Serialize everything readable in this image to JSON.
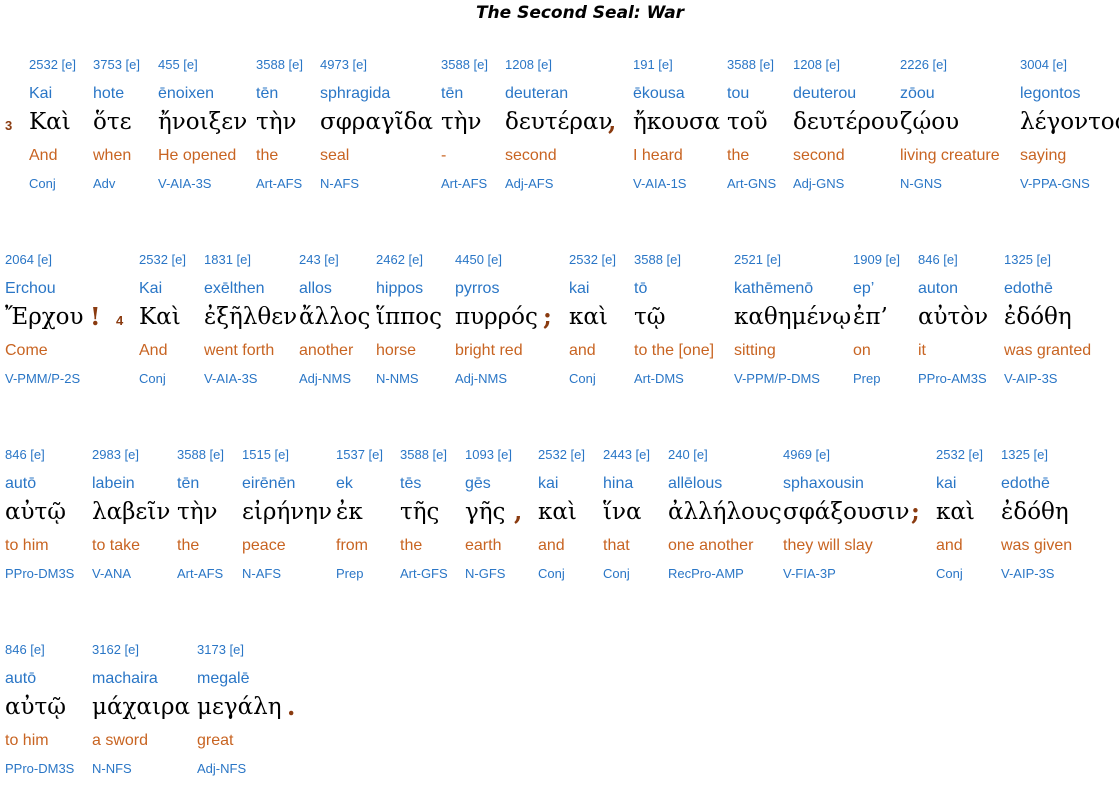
{
  "title": "The Second Seal: War",
  "lines": [
    {
      "verses": [
        {
          "num": "3"
        }
      ],
      "punct": [
        ",",
        ""
      ],
      "words": [
        {
          "strong": "2532 [e]",
          "translit": "Kai",
          "greek": "Καὶ",
          "english": "And",
          "parsing": "Conj"
        },
        {
          "strong": "3753 [e]",
          "translit": "hote",
          "greek": "ὅτε",
          "english": "when",
          "parsing": "Adv"
        },
        {
          "strong": "455 [e]",
          "translit": "ēnoixen",
          "greek": "ἤνοιξεν",
          "english": "He opened",
          "parsing": "V-AIA-3S"
        },
        {
          "strong": "3588 [e]",
          "translit": "tēn",
          "greek": "τὴν",
          "english": "the",
          "parsing": "Art-AFS"
        },
        {
          "strong": "4973 [e]",
          "translit": "sphragida",
          "greek": "σφραγῖδα",
          "english": "seal",
          "parsing": "N-AFS"
        },
        {
          "strong": "3588 [e]",
          "translit": "tēn",
          "greek": "τὴν",
          "english": "-",
          "parsing": "Art-AFS"
        },
        {
          "strong": "1208 [e]",
          "translit": "deuteran",
          "greek": "δευτέραν",
          "english": "second",
          "parsing": "Adj-AFS"
        },
        {
          "strong": "191 [e]",
          "translit": "ēkousa",
          "greek": "ἤκουσα",
          "english": "I heard",
          "parsing": "V-AIA-1S"
        },
        {
          "strong": "3588 [e]",
          "translit": "tou",
          "greek": "τοῦ",
          "english": "the",
          "parsing": "Art-GNS"
        },
        {
          "strong": "1208 [e]",
          "translit": "deuterou",
          "greek": "δευτέρου",
          "english": "second",
          "parsing": "Adj-GNS"
        },
        {
          "strong": "2226 [e]",
          "translit": "zōou",
          "greek": "ζῴου",
          "english": "living creature",
          "parsing": "N-GNS"
        },
        {
          "strong": "3004 [e]",
          "translit": "legontos",
          "greek": "λέγοντος",
          "english": "saying",
          "parsing": "V-PPA-GNS"
        }
      ]
    },
    {
      "verses": [
        {
          "num": "4"
        }
      ],
      "punct": [
        "!",
        ";"
      ],
      "words": [
        {
          "strong": "2064 [e]",
          "translit": "Erchou",
          "greek": "Ἔρχου",
          "english": "Come",
          "parsing": "V-PMM/P-2S"
        },
        {
          "strong": "2532 [e]",
          "translit": "Kai",
          "greek": "Καὶ",
          "english": "And",
          "parsing": "Conj"
        },
        {
          "strong": "1831 [e]",
          "translit": "exēlthen",
          "greek": "ἐξῆλθεν",
          "english": "went forth",
          "parsing": "V-AIA-3S"
        },
        {
          "strong": "243 [e]",
          "translit": "allos",
          "greek": "ἄλλος",
          "english": "another",
          "parsing": "Adj-NMS"
        },
        {
          "strong": "2462 [e]",
          "translit": "hippos",
          "greek": "ἵππος",
          "english": "horse",
          "parsing": "N-NMS"
        },
        {
          "strong": "4450 [e]",
          "translit": "pyrros",
          "greek": "πυρρός",
          "english": "bright red",
          "parsing": "Adj-NMS"
        },
        {
          "strong": "2532 [e]",
          "translit": "kai",
          "greek": "καὶ",
          "english": "and",
          "parsing": "Conj"
        },
        {
          "strong": "3588 [e]",
          "translit": "tō",
          "greek": "τῷ",
          "english": "to the [one]",
          "parsing": "Art-DMS"
        },
        {
          "strong": "2521 [e]",
          "translit": "kathēmenō",
          "greek": "καθημένῳ",
          "english": "sitting",
          "parsing": "V-PPM/P-DMS"
        },
        {
          "strong": "1909 [e]",
          "translit": "ep’",
          "greek": "ἐπ’",
          "english": "on",
          "parsing": "Prep"
        },
        {
          "strong": "846 [e]",
          "translit": "auton",
          "greek": "αὐτὸν",
          "english": "it",
          "parsing": "PPro-AM3S"
        },
        {
          "strong": "1325 [e]",
          "translit": "edothē",
          "greek": "ἐδόθη",
          "english": "was granted",
          "parsing": "V-AIP-3S"
        }
      ]
    },
    {
      "verses": [],
      "punct": [
        ",",
        ";"
      ],
      "words": [
        {
          "strong": "846 [e]",
          "translit": "autō",
          "greek": "αὐτῷ",
          "english": "to him",
          "parsing": "PPro-DM3S"
        },
        {
          "strong": "2983 [e]",
          "translit": "labein",
          "greek": "λαβεῖν",
          "english": "to take",
          "parsing": "V-ANA"
        },
        {
          "strong": "3588 [e]",
          "translit": "tēn",
          "greek": "τὴν",
          "english": "the",
          "parsing": "Art-AFS"
        },
        {
          "strong": "1515 [e]",
          "translit": "eirēnēn",
          "greek": "εἰρήνην",
          "english": "peace",
          "parsing": "N-AFS"
        },
        {
          "strong": "1537 [e]",
          "translit": "ek",
          "greek": "ἐκ",
          "english": "from",
          "parsing": "Prep"
        },
        {
          "strong": "3588 [e]",
          "translit": "tēs",
          "greek": "τῆς",
          "english": "the",
          "parsing": "Art-GFS"
        },
        {
          "strong": "1093 [e]",
          "translit": "gēs",
          "greek": "γῆς",
          "english": "earth",
          "parsing": "N-GFS"
        },
        {
          "strong": "2532 [e]",
          "translit": "kai",
          "greek": "καὶ",
          "english": "and",
          "parsing": "Conj"
        },
        {
          "strong": "2443 [e]",
          "translit": "hina",
          "greek": "ἵνα",
          "english": "that",
          "parsing": "Conj"
        },
        {
          "strong": "240 [e]",
          "translit": "allēlous",
          "greek": "ἀλλήλους",
          "english": "one another",
          "parsing": "RecPro-AMP"
        },
        {
          "strong": "4969 [e]",
          "translit": "sphaxousin",
          "greek": "σφάξουσιν",
          "english": "they will slay",
          "parsing": "V-FIA-3P"
        },
        {
          "strong": "2532 [e]",
          "translit": "kai",
          "greek": "καὶ",
          "english": "and",
          "parsing": "Conj"
        },
        {
          "strong": "1325 [e]",
          "translit": "edothē",
          "greek": "ἐδόθη",
          "english": "was given",
          "parsing": "V-AIP-3S"
        }
      ]
    },
    {
      "verses": [],
      "punct": [
        "."
      ],
      "words": [
        {
          "strong": "846 [e]",
          "translit": "autō",
          "greek": "αὐτῷ",
          "english": "to him",
          "parsing": "PPro-DM3S"
        },
        {
          "strong": "3162 [e]",
          "translit": "machaira",
          "greek": "μάχαιρα",
          "english": "a sword",
          "parsing": "N-NFS"
        },
        {
          "strong": "3173 [e]",
          "translit": "megalē",
          "greek": "μεγάλη",
          "english": "great",
          "parsing": "Adj-NFS"
        }
      ]
    }
  ]
}
